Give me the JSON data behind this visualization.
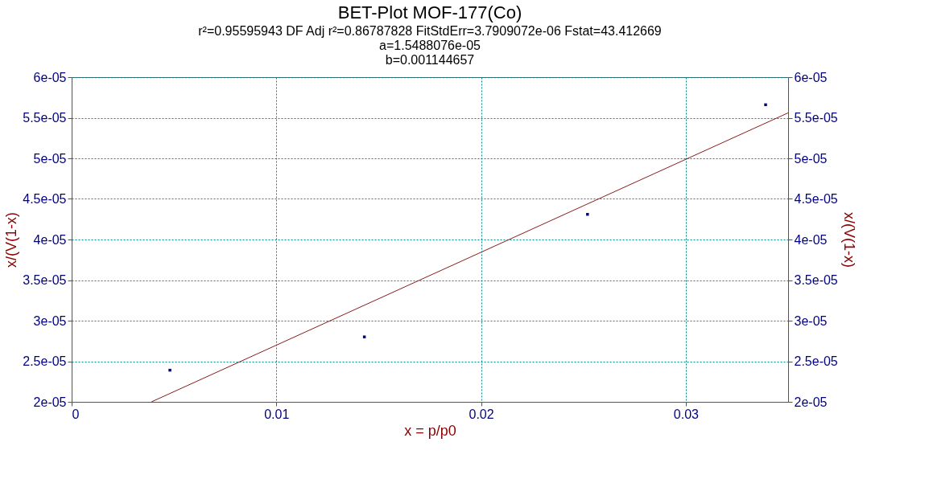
{
  "chart_data": {
    "type": "scatter",
    "title": "BET-Plot MOF-177(Co)",
    "subtitle": "r²=0.95595943  DF Adj r²=0.86787828  FitStdErr=3.7909072e-06  Fstat=43.412669",
    "annotations": [
      "a=1.5488076e-05",
      "b=0.001144657"
    ],
    "xlabel": "x = p/p0",
    "ylabel": "x/(V(1-x)",
    "y2label": "x/(V(1-x)",
    "xlim": [
      0,
      0.035
    ],
    "xticks": [
      0,
      0.01,
      0.02,
      0.03
    ],
    "ylim": [
      2e-05,
      6e-05
    ],
    "yticks": [
      {
        "value": 2e-05,
        "label": "2e-05"
      },
      {
        "value": 2.5e-05,
        "label": "2.5e-05"
      },
      {
        "value": 3e-05,
        "label": "3e-05"
      },
      {
        "value": 3.5e-05,
        "label": "3.5e-05"
      },
      {
        "value": 4e-05,
        "label": "4e-05"
      },
      {
        "value": 4.5e-05,
        "label": "4.5e-05"
      },
      {
        "value": 5e-05,
        "label": "5e-05"
      },
      {
        "value": 5.5e-05,
        "label": "5.5e-05"
      },
      {
        "value": 6e-05,
        "label": "6e-05"
      }
    ],
    "y2lim": [
      2e-05,
      6e-05
    ],
    "y2ticks": [
      {
        "value": 2e-05,
        "label": "2e-05"
      },
      {
        "value": 2.5e-05,
        "label": "2.5e-05"
      },
      {
        "value": 3e-05,
        "label": "3e-05"
      },
      {
        "value": 3.5e-05,
        "label": "3.5e-05"
      },
      {
        "value": 4e-05,
        "label": "4e-05"
      },
      {
        "value": 4.5e-05,
        "label": "4.5e-05"
      },
      {
        "value": 5e-05,
        "label": "5e-05"
      },
      {
        "value": 5.5e-05,
        "label": "5.5e-05"
      },
      {
        "value": 6e-05,
        "label": "6e-05"
      }
    ],
    "grid": true,
    "series": [
      {
        "color": "#000080",
        "marker": "square",
        "x": [
          0.0048,
          0.0143,
          0.0252,
          0.0339
        ],
        "values": [
          2.39e-05,
          2.8e-05,
          4.31e-05,
          5.66e-05
        ]
      },
      {
        "type": "line",
        "axis": "y2",
        "color": "#8b1a1a",
        "line_style": "solid",
        "x": [
          0.0039,
          0.035
        ],
        "values": [
          2e-05,
          5.56e-05
        ]
      }
    ]
  }
}
